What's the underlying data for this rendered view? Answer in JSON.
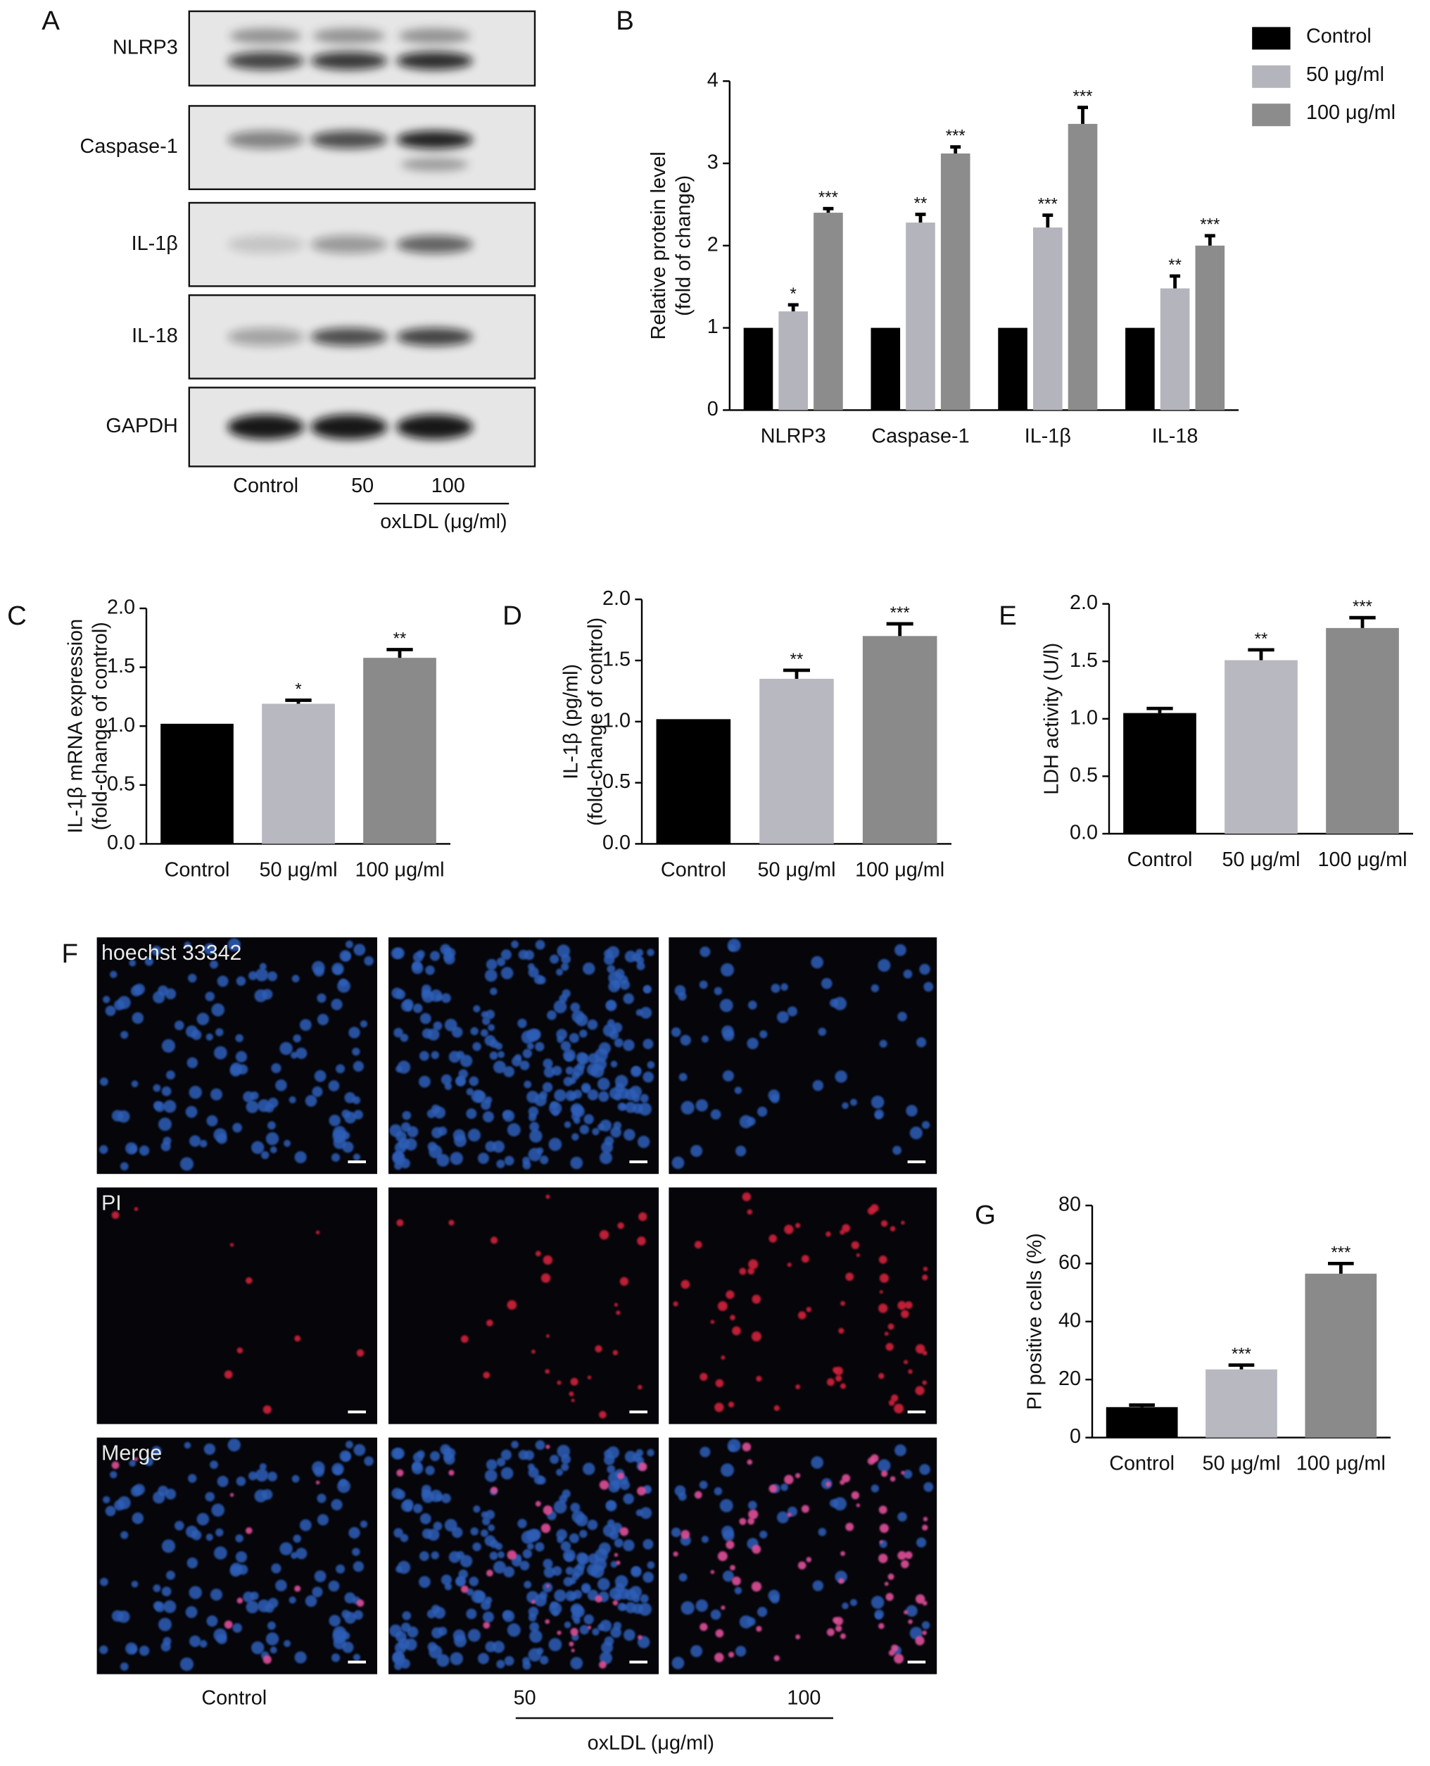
{
  "panel_labels": [
    "A",
    "B",
    "C",
    "D",
    "E",
    "F",
    "G"
  ],
  "blot": {
    "rows": [
      "NLRP3",
      "Caspase-1",
      "IL-1β",
      "IL-18",
      "GAPDH"
    ],
    "lanes": [
      "Control",
      "50",
      "100"
    ],
    "treatment": "oxLDL (μg/ml)"
  },
  "microscopy": {
    "channels": [
      "hoechst 33342",
      "PI",
      "Merge"
    ],
    "lanes": [
      "Control",
      "50",
      "100"
    ],
    "treatment": "oxLDL (μg/ml)"
  },
  "chart_data": [
    {
      "type": "grouped-bar",
      "categories": [
        "NLRP3",
        "Caspase-1",
        "IL-1β",
        "IL-18"
      ],
      "series": [
        {
          "name": "Control",
          "color": "#000000",
          "values": [
            1,
            1,
            1,
            1
          ],
          "errors": [
            null,
            null,
            null,
            null
          ],
          "annotations": [
            null,
            null,
            null,
            null
          ]
        },
        {
          "name": "50 μg/ml",
          "color": "#b4b4bc",
          "values": [
            1.2,
            2.28,
            2.22,
            1.48
          ],
          "errors": [
            0.08,
            0.1,
            0.15,
            0.15
          ],
          "annotations": [
            "*",
            "**",
            "***",
            "**"
          ]
        },
        {
          "name": "100 μg/ml",
          "color": "#8c8c8c",
          "values": [
            2.4,
            3.12,
            3.48,
            2.0
          ],
          "errors": [
            0.05,
            0.08,
            0.2,
            0.12
          ],
          "annotations": [
            "***",
            "***",
            "***",
            "***"
          ]
        }
      ],
      "ylabel": [
        "Relative protein level",
        "(fold of change)"
      ],
      "ylim": [
        0,
        4
      ],
      "yticks": [
        0,
        1,
        2,
        3,
        4
      ],
      "legend": "top-right"
    },
    {
      "type": "bar",
      "categories": [
        "Control",
        "50 μg/ml",
        "100 μg/ml"
      ],
      "values": [
        1.02,
        1.19,
        1.58
      ],
      "errors": [
        null,
        0.03,
        0.07
      ],
      "annotations": [
        null,
        "*",
        "**"
      ],
      "colors": [
        "#000000",
        "#b8b8c0",
        "#8a8a8a"
      ],
      "ylabel": [
        "IL-1β mRNA expression",
        "(fold-change of control)"
      ],
      "ylim": [
        0,
        2
      ],
      "yticks": [
        {
          "value": 0,
          "label": "0.0"
        },
        {
          "value": 0.5,
          "label": "0.5"
        },
        {
          "value": 1,
          "label": "1.0"
        },
        {
          "value": 1.5,
          "label": "1.5"
        },
        {
          "value": 2,
          "label": "2.0"
        }
      ]
    },
    {
      "type": "bar",
      "categories": [
        "Control",
        "50 μg/ml",
        "100 μg/ml"
      ],
      "values": [
        1.02,
        1.35,
        1.7
      ],
      "errors": [
        null,
        0.07,
        0.1
      ],
      "annotations": [
        null,
        "**",
        "***"
      ],
      "colors": [
        "#000000",
        "#b8b8c0",
        "#8a8a8a"
      ],
      "ylabel": [
        "IL-1β (pg/ml)",
        "(fold-change of control)"
      ],
      "ylim": [
        0,
        2
      ],
      "yticks": [
        {
          "value": 0,
          "label": "0.0"
        },
        {
          "value": 0.5,
          "label": "0.5"
        },
        {
          "value": 1,
          "label": "1.0"
        },
        {
          "value": 1.5,
          "label": "1.5"
        },
        {
          "value": 2,
          "label": "2.0"
        }
      ]
    },
    {
      "type": "bar",
      "categories": [
        "Control",
        "50 μg/ml",
        "100 μg/ml"
      ],
      "values": [
        1.05,
        1.51,
        1.79
      ],
      "errors": [
        0.04,
        0.09,
        0.09
      ],
      "annotations": [
        null,
        "**",
        "***"
      ],
      "colors": [
        "#000000",
        "#b8b8c0",
        "#8a8a8a"
      ],
      "ylabel": [
        "LDH activity (U/l)"
      ],
      "ylim": [
        0,
        2
      ],
      "yticks": [
        {
          "value": 0,
          "label": "0.0"
        },
        {
          "value": 0.5,
          "label": "0.5"
        },
        {
          "value": 1,
          "label": "1.0"
        },
        {
          "value": 1.5,
          "label": "1.5"
        },
        {
          "value": 2,
          "label": "2.0"
        }
      ]
    },
    {
      "type": "bar",
      "categories": [
        "Control",
        "50 μg/ml",
        "100 μg/ml"
      ],
      "values": [
        10.5,
        23.5,
        56.5
      ],
      "errors": [
        0.7,
        1.5,
        3.5
      ],
      "annotations": [
        null,
        "***",
        "***"
      ],
      "colors": [
        "#000000",
        "#b8b8c0",
        "#8a8a8a"
      ],
      "ylabel": [
        "PI positive cells (%)"
      ],
      "ylim": [
        0,
        80
      ],
      "yticks": [
        0,
        20,
        40,
        60,
        80
      ]
    }
  ]
}
